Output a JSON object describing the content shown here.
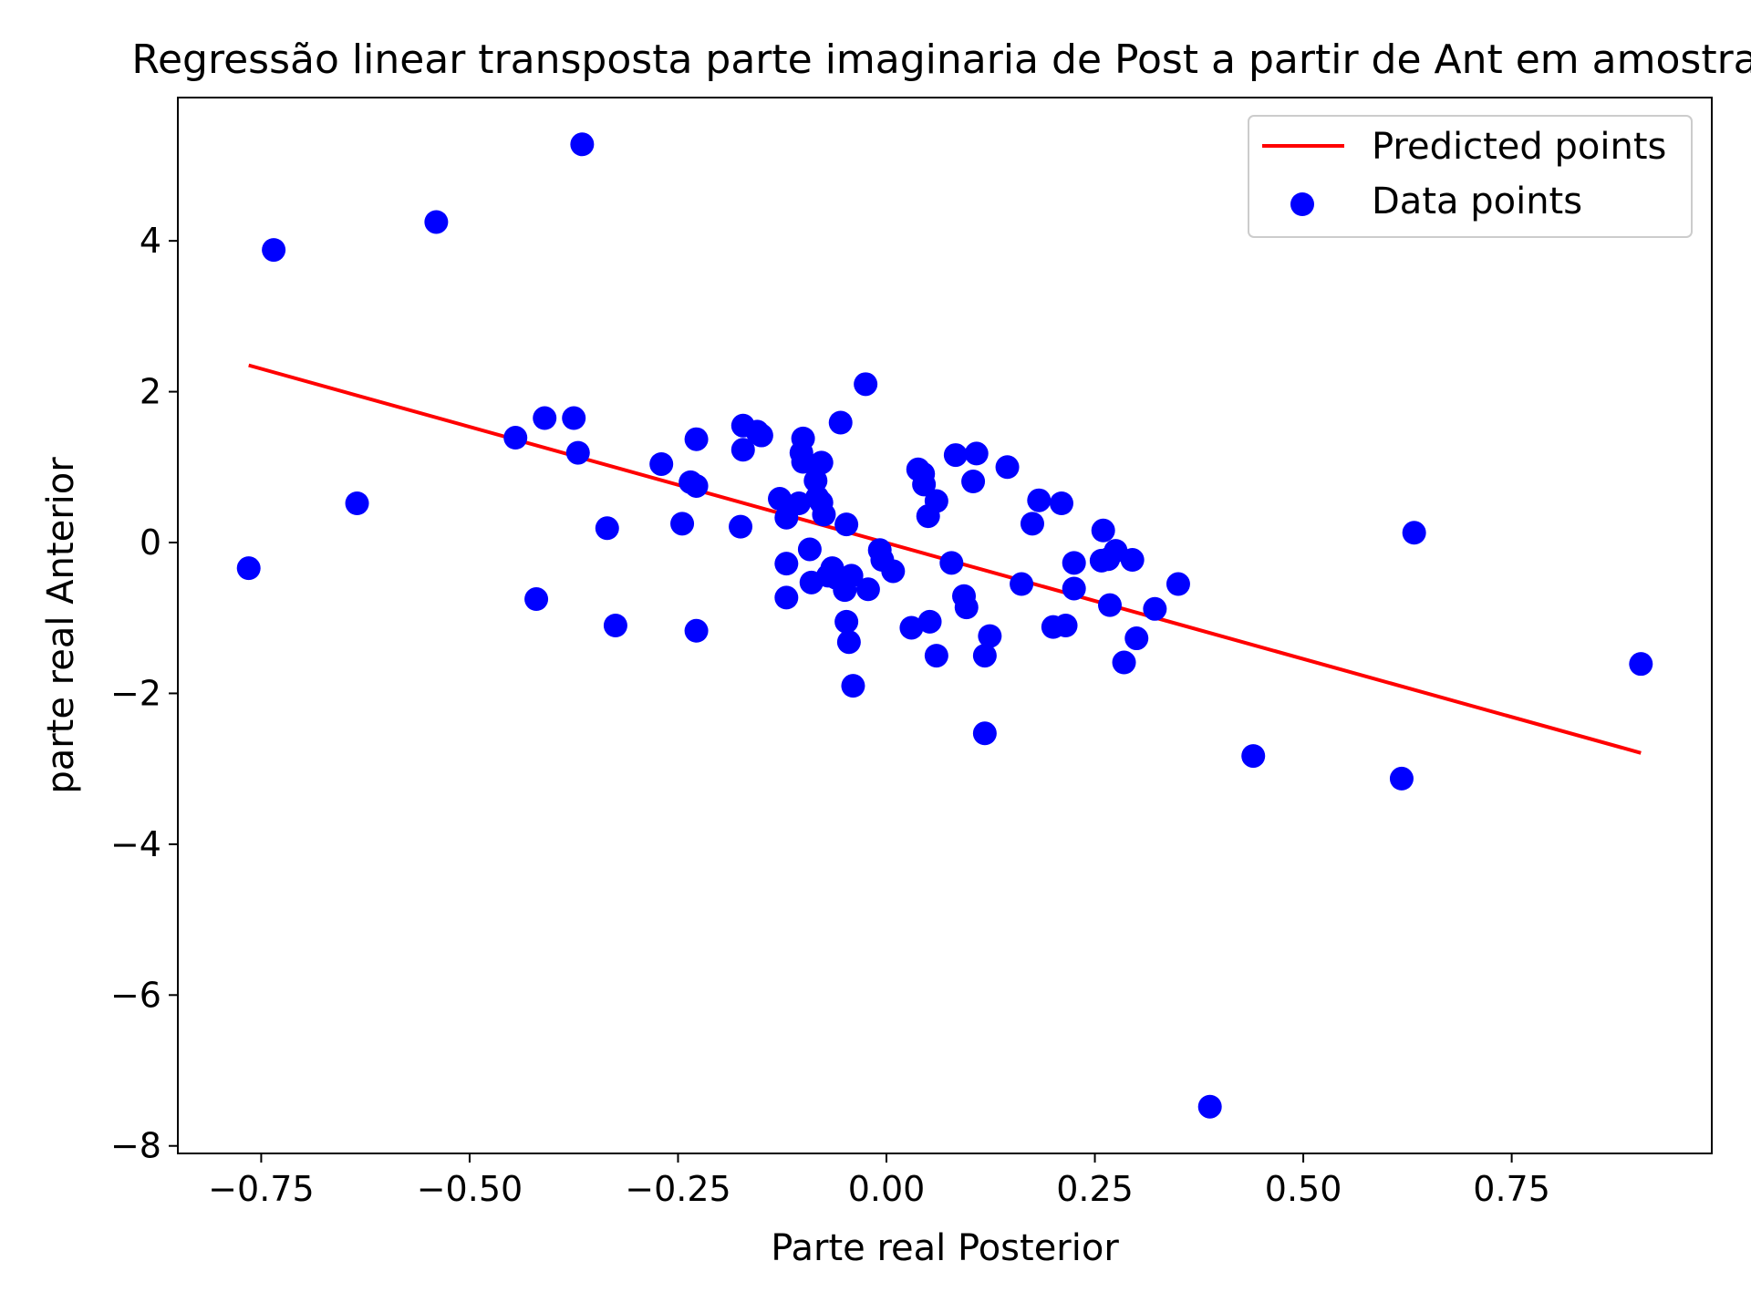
{
  "chart_data": {
    "type": "scatter",
    "title": "Regressão linear transposta parte imaginaria de Post a partir de Ant em amostra",
    "xlabel": "Parte real Posterior",
    "ylabel": "parte real Anterior",
    "xlim": [
      -0.85,
      0.99
    ],
    "ylim": [
      -8.1,
      5.9
    ],
    "xticks": [
      -0.75,
      -0.5,
      -0.25,
      0.0,
      0.25,
      0.5,
      0.75
    ],
    "xtick_labels": [
      "−0.75",
      "−0.50",
      "−0.25",
      "0.00",
      "0.25",
      "0.50",
      "0.75"
    ],
    "yticks": [
      -8,
      -6,
      -4,
      -2,
      0,
      2,
      4
    ],
    "ytick_labels": [
      "−8",
      "−6",
      "−4",
      "−2",
      "0",
      "2",
      "4"
    ],
    "grid": false,
    "legend": {
      "placement": "upper right",
      "entries": [
        {
          "label": "Predicted points",
          "kind": "line",
          "color": "#ff0000"
        },
        {
          "label": "Data points",
          "kind": "marker",
          "color": "#0000ff"
        }
      ]
    },
    "series": [
      {
        "name": "Predicted points",
        "kind": "line",
        "color": "#ff0000",
        "x": [
          -0.765,
          0.905
        ],
        "y": [
          2.35,
          -2.79
        ]
      },
      {
        "name": "Data points",
        "kind": "scatter",
        "color": "#0000ff",
        "points": [
          [
            -0.765,
            -0.34
          ],
          [
            -0.735,
            3.88
          ],
          [
            -0.635,
            0.52
          ],
          [
            -0.54,
            4.25
          ],
          [
            -0.445,
            1.39
          ],
          [
            -0.42,
            -0.75
          ],
          [
            -0.41,
            1.65
          ],
          [
            -0.375,
            1.65
          ],
          [
            -0.37,
            1.19
          ],
          [
            -0.365,
            5.28
          ],
          [
            -0.335,
            0.19
          ],
          [
            -0.325,
            -1.1
          ],
          [
            -0.27,
            1.04
          ],
          [
            -0.245,
            0.25
          ],
          [
            -0.235,
            0.8
          ],
          [
            -0.228,
            0.75
          ],
          [
            -0.228,
            1.37
          ],
          [
            -0.228,
            -1.17
          ],
          [
            -0.175,
            0.21
          ],
          [
            -0.172,
            1.55
          ],
          [
            -0.172,
            1.23
          ],
          [
            -0.155,
            1.47
          ],
          [
            -0.15,
            1.42
          ],
          [
            -0.128,
            0.58
          ],
          [
            -0.12,
            0.33
          ],
          [
            -0.12,
            -0.28
          ],
          [
            -0.12,
            -0.73
          ],
          [
            -0.105,
            0.52
          ],
          [
            -0.102,
            1.19
          ],
          [
            -0.1,
            1.38
          ],
          [
            -0.1,
            1.07
          ],
          [
            -0.092,
            -0.09
          ],
          [
            -0.09,
            -0.53
          ],
          [
            -0.085,
            0.82
          ],
          [
            -0.083,
            0.6
          ],
          [
            -0.078,
            1.06
          ],
          [
            -0.078,
            0.53
          ],
          [
            -0.075,
            0.37
          ],
          [
            -0.07,
            -0.44
          ],
          [
            -0.065,
            -0.34
          ],
          [
            -0.06,
            -0.47
          ],
          [
            -0.055,
            1.59
          ],
          [
            -0.05,
            -0.63
          ],
          [
            -0.048,
            0.24
          ],
          [
            -0.048,
            -1.05
          ],
          [
            -0.045,
            -1.32
          ],
          [
            -0.042,
            -0.44
          ],
          [
            -0.04,
            -1.9
          ],
          [
            -0.025,
            2.1
          ],
          [
            -0.022,
            -0.62
          ],
          [
            -0.008,
            -0.1
          ],
          [
            -0.005,
            -0.23
          ],
          [
            0.008,
            -0.38
          ],
          [
            0.03,
            -1.13
          ],
          [
            0.038,
            0.97
          ],
          [
            0.044,
            0.91
          ],
          [
            0.045,
            0.77
          ],
          [
            0.05,
            0.35
          ],
          [
            0.052,
            -1.05
          ],
          [
            0.06,
            0.55
          ],
          [
            0.06,
            -1.5
          ],
          [
            0.078,
            -0.27
          ],
          [
            0.083,
            1.16
          ],
          [
            0.093,
            -0.71
          ],
          [
            0.096,
            -0.86
          ],
          [
            0.104,
            0.81
          ],
          [
            0.108,
            1.18
          ],
          [
            0.118,
            -1.5
          ],
          [
            0.118,
            -2.53
          ],
          [
            0.124,
            -1.24
          ],
          [
            0.145,
            1.0
          ],
          [
            0.162,
            -0.55
          ],
          [
            0.175,
            0.25
          ],
          [
            0.183,
            0.56
          ],
          [
            0.2,
            -1.12
          ],
          [
            0.21,
            0.52
          ],
          [
            0.215,
            -1.1
          ],
          [
            0.225,
            -0.27
          ],
          [
            0.225,
            -0.61
          ],
          [
            0.258,
            -0.24
          ],
          [
            0.26,
            0.16
          ],
          [
            0.266,
            -0.22
          ],
          [
            0.268,
            -0.83
          ],
          [
            0.275,
            -0.11
          ],
          [
            0.285,
            -1.59
          ],
          [
            0.295,
            -0.23
          ],
          [
            0.3,
            -1.27
          ],
          [
            0.322,
            -0.88
          ],
          [
            0.35,
            -0.55
          ],
          [
            0.388,
            -7.48
          ],
          [
            0.44,
            -2.83
          ],
          [
            0.618,
            -3.13
          ],
          [
            0.633,
            0.13
          ],
          [
            0.905,
            -1.61
          ]
        ]
      }
    ]
  }
}
